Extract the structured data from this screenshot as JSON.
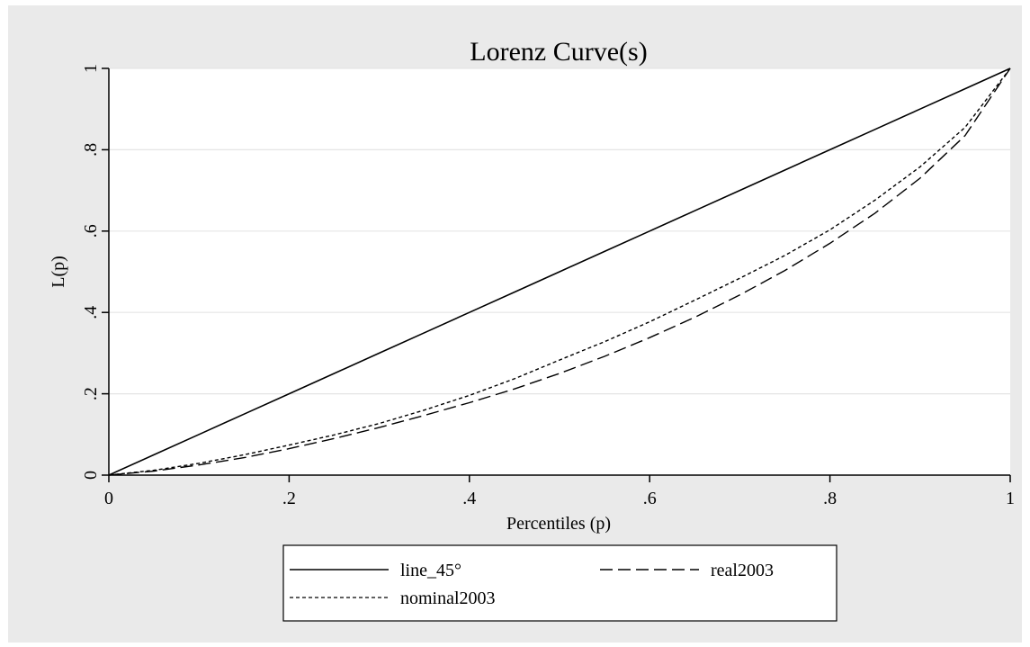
{
  "chart_data": {
    "type": "line",
    "title": "Lorenz Curve(s)",
    "xlabel": "Percentiles (p)",
    "ylabel": "L(p)",
    "xlim": [
      0,
      1
    ],
    "ylim": [
      0,
      1
    ],
    "grid": true,
    "legend_position": "bottom",
    "x_ticks": [
      {
        "value": 0,
        "label": "0"
      },
      {
        "value": 0.2,
        "label": ".2"
      },
      {
        "value": 0.4,
        "label": ".4"
      },
      {
        "value": 0.6,
        "label": ".6"
      },
      {
        "value": 0.8,
        "label": ".8"
      },
      {
        "value": 1,
        "label": "1"
      }
    ],
    "y_ticks": [
      {
        "value": 0,
        "label": "0"
      },
      {
        "value": 0.2,
        "label": ".2"
      },
      {
        "value": 0.4,
        "label": ".4"
      },
      {
        "value": 0.6,
        "label": ".6"
      },
      {
        "value": 0.8,
        "label": ".8"
      },
      {
        "value": 1,
        "label": "1"
      }
    ],
    "x": [
      0,
      0.05,
      0.1,
      0.15,
      0.2,
      0.25,
      0.3,
      0.35,
      0.4,
      0.45,
      0.5,
      0.55,
      0.6,
      0.65,
      0.7,
      0.75,
      0.8,
      0.85,
      0.9,
      0.95,
      1
    ],
    "series": [
      {
        "name": "line_45°",
        "style": "solid",
        "values": [
          0,
          0.05,
          0.1,
          0.15,
          0.2,
          0.25,
          0.3,
          0.35,
          0.4,
          0.45,
          0.5,
          0.55,
          0.6,
          0.65,
          0.7,
          0.75,
          0.8,
          0.85,
          0.9,
          0.95,
          1
        ]
      },
      {
        "name": "real2003",
        "style": "longdash",
        "values": [
          0,
          0.01,
          0.025,
          0.043,
          0.065,
          0.09,
          0.117,
          0.147,
          0.178,
          0.212,
          0.25,
          0.292,
          0.338,
          0.388,
          0.443,
          0.503,
          0.57,
          0.644,
          0.73,
          0.835,
          1
        ]
      },
      {
        "name": "nominal2003",
        "style": "shortdash",
        "values": [
          0,
          0.012,
          0.029,
          0.05,
          0.074,
          0.099,
          0.127,
          0.16,
          0.196,
          0.237,
          0.283,
          0.328,
          0.377,
          0.43,
          0.484,
          0.54,
          0.603,
          0.676,
          0.758,
          0.855,
          1
        ]
      }
    ],
    "colors": {
      "frame_bg": "#eaeaea",
      "plot_bg": "#ffffff",
      "grid": "#e5e5e5",
      "line": "#000000"
    }
  }
}
